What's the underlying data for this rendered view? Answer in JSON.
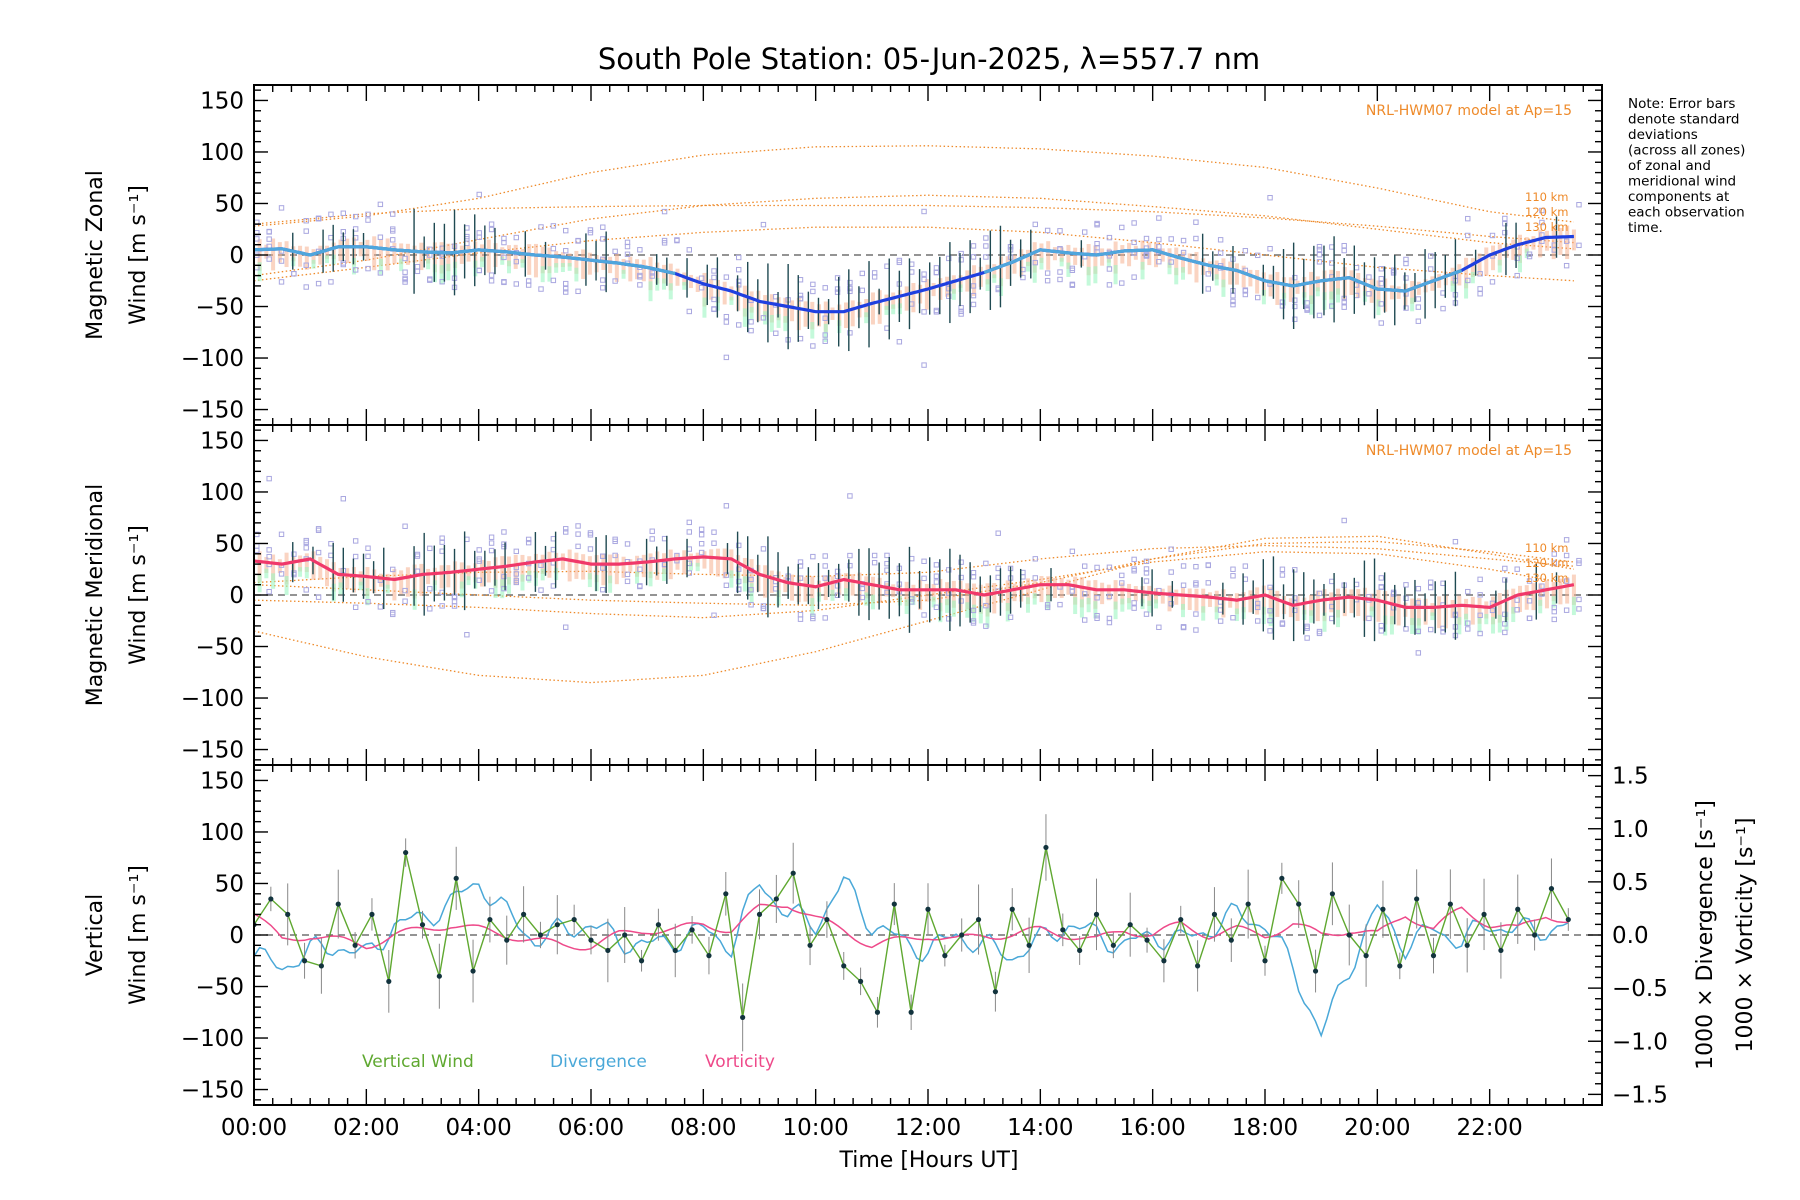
{
  "title": "South Pole Station: 05-Jun-2025, λ=557.7 nm",
  "note_lines": [
    "Note: Error bars",
    "denote standard",
    "deviations",
    "(across all zones)",
    "of zonal and",
    "meridional wind",
    "components at",
    "each observation",
    "time."
  ],
  "x_axis": {
    "label": "Time [Hours UT]",
    "ticks": [
      "00:00",
      "02:00",
      "04:00",
      "06:00",
      "08:00",
      "10:00",
      "12:00",
      "14:00",
      "16:00",
      "18:00",
      "20:00",
      "22:00"
    ]
  },
  "colors": {
    "model": "#ee8a2a",
    "zonal_mean": "#1f3fe0",
    "zonal_mean_light": "#4fa6dc",
    "meridional_mean": "#f0386a",
    "vertical": "#5fa830",
    "divergence": "#4aa8d8",
    "vorticity": "#ee4a8a",
    "scatter": "#a9a7e0",
    "errorbar": "#1f4a52",
    "green_shade": "#9df5c2",
    "salmon_shade": "#f5b090",
    "baseline": "#555555"
  },
  "chart_data": [
    {
      "type": "line",
      "panel": "zonal",
      "ylabel": [
        "Magnetic Zonal",
        "Wind [m s⁻¹]"
      ],
      "ylim": [
        -165,
        165
      ],
      "yticks": [
        "150",
        "100",
        "50",
        "0",
        "−50",
        "−100",
        "−150"
      ],
      "model_label": "NRL-HWM07 model at Ap=15",
      "model_altitudes": [
        "110 km",
        "120 km",
        "130 km"
      ],
      "series": [
        {
          "name": "Mean zonal wind",
          "x": [
            0,
            0.5,
            1,
            1.5,
            2,
            2.5,
            3,
            3.5,
            4,
            4.5,
            5,
            5.5,
            6,
            6.5,
            7,
            7.5,
            8,
            8.5,
            9,
            9.5,
            10,
            10.5,
            11,
            11.5,
            12,
            12.5,
            13,
            13.5,
            14,
            14.5,
            15,
            15.5,
            16,
            16.5,
            17,
            17.5,
            18,
            18.5,
            19,
            19.5,
            20,
            20.5,
            21,
            21.5,
            22,
            22.5,
            23,
            23.5
          ],
          "values": [
            5,
            6,
            0,
            8,
            8,
            5,
            3,
            2,
            5,
            3,
            0,
            -2,
            -5,
            -8,
            -12,
            -18,
            -28,
            -35,
            -45,
            -50,
            -55,
            -55,
            -47,
            -40,
            -33,
            -25,
            -17,
            -7,
            5,
            2,
            0,
            4,
            5,
            -3,
            -10,
            -15,
            -25,
            -30,
            -25,
            -22,
            -33,
            -35,
            -25,
            -15,
            0,
            10,
            17,
            18
          ]
        },
        {
          "name": "NRL-HWM07 110 km",
          "x": [
            0,
            2,
            4,
            6,
            8,
            10,
            12,
            14,
            16,
            18,
            20,
            22,
            23.5
          ],
          "values": [
            28,
            38,
            55,
            80,
            97,
            105,
            106,
            103,
            96,
            85,
            65,
            42,
            32
          ]
        },
        {
          "name": "NRL-HWM07 120 km",
          "x": [
            0,
            2,
            4,
            6,
            8,
            10,
            12,
            14,
            16,
            18,
            20,
            22,
            23.5
          ],
          "values": [
            -20,
            -5,
            15,
            35,
            48,
            55,
            58,
            55,
            47,
            38,
            25,
            12,
            6
          ]
        },
        {
          "name": "NRL-HWM07 130 km",
          "x": [
            0,
            2,
            4,
            6,
            8,
            10,
            12,
            14,
            16,
            18,
            20,
            22,
            23.5
          ],
          "values": [
            30,
            40,
            45,
            47,
            48,
            48,
            48,
            46,
            42,
            36,
            28,
            18,
            12
          ]
        },
        {
          "name": "NRL-HWM07 lower",
          "x": [
            0,
            2,
            4,
            6,
            8,
            10,
            12,
            14,
            16,
            18,
            20,
            22,
            23.5
          ],
          "values": [
            -25,
            -12,
            2,
            14,
            22,
            27,
            27,
            22,
            12,
            0,
            -12,
            -20,
            -25
          ]
        }
      ]
    },
    {
      "type": "line",
      "panel": "meridional",
      "ylabel": [
        "Magnetic Meridional",
        "Wind [m s⁻¹]"
      ],
      "ylim": [
        -165,
        165
      ],
      "yticks": [
        "150",
        "100",
        "50",
        "0",
        "−50",
        "−100",
        "−150"
      ],
      "model_label": "NRL-HWM07 model at Ap=15",
      "model_altitudes": [
        "110 km",
        "120 km",
        "130 km"
      ],
      "series": [
        {
          "name": "Mean meridional wind",
          "x": [
            0,
            0.5,
            1,
            1.5,
            2,
            2.5,
            3,
            3.5,
            4,
            4.5,
            5,
            5.5,
            6,
            6.5,
            7,
            7.5,
            8,
            8.5,
            9,
            9.5,
            10,
            10.5,
            11,
            11.5,
            12,
            12.5,
            13,
            13.5,
            14,
            14.5,
            15,
            15.5,
            16,
            16.5,
            17,
            17.5,
            18,
            18.5,
            19,
            19.5,
            20,
            20.5,
            21,
            21.5,
            22,
            22.5,
            23,
            23.5
          ],
          "values": [
            33,
            30,
            35,
            20,
            18,
            15,
            20,
            22,
            25,
            28,
            32,
            35,
            30,
            30,
            32,
            35,
            37,
            35,
            20,
            12,
            8,
            15,
            10,
            5,
            5,
            5,
            0,
            5,
            10,
            10,
            5,
            5,
            2,
            0,
            -2,
            -5,
            0,
            -10,
            -5,
            -2,
            -5,
            -12,
            -12,
            -10,
            -12,
            0,
            5,
            10
          ]
        },
        {
          "name": "NRL-HWM07 110 km",
          "x": [
            0,
            2,
            4,
            6,
            8,
            10,
            12,
            14,
            16,
            18,
            20,
            22,
            23.5
          ],
          "values": [
            -35,
            -60,
            -78,
            -85,
            -78,
            -55,
            -25,
            5,
            35,
            55,
            57,
            40,
            25
          ]
        },
        {
          "name": "NRL-HWM07 120 km",
          "x": [
            0,
            2,
            4,
            6,
            8,
            10,
            12,
            14,
            16,
            18,
            20,
            22,
            23.5
          ],
          "values": [
            10,
            5,
            0,
            -5,
            -8,
            -10,
            -5,
            12,
            35,
            50,
            52,
            42,
            32
          ]
        },
        {
          "name": "NRL-HWM07 130 km",
          "x": [
            0,
            2,
            4,
            6,
            8,
            10,
            12,
            14,
            16,
            18,
            20,
            22,
            23.5
          ],
          "values": [
            12,
            18,
            22,
            23,
            20,
            18,
            22,
            35,
            45,
            48,
            45,
            35,
            28
          ]
        },
        {
          "name": "NRL-HWM07 lower",
          "x": [
            0,
            2,
            4,
            6,
            8,
            10,
            12,
            14,
            16,
            18,
            20,
            22,
            23.5
          ],
          "values": [
            -5,
            -8,
            -12,
            -18,
            -22,
            -15,
            0,
            15,
            32,
            42,
            40,
            25,
            10
          ]
        }
      ]
    },
    {
      "type": "line",
      "panel": "vertical",
      "ylabel": [
        "Vertical",
        "Wind [m s⁻¹]"
      ],
      "ylim": [
        -165,
        165
      ],
      "yticks": [
        "150",
        "100",
        "50",
        "0",
        "−50",
        "−100",
        "−150"
      ],
      "y2label_divergence": "1000 × Divergence [s⁻¹]",
      "y2label_vorticity": "1000 × Vorticity [s⁻¹]",
      "y2lim": [
        -1.6,
        1.6
      ],
      "y2ticks": [
        "1.5",
        "1.0",
        "0.5",
        "0.0",
        "−0.5",
        "−1.0",
        "−1.5"
      ],
      "legend": [
        "Vertical Wind",
        "Divergence",
        "Vorticity"
      ],
      "series": [
        {
          "name": "Vertical Wind",
          "x": [
            0,
            0.3,
            0.6,
            0.9,
            1.2,
            1.5,
            1.8,
            2.1,
            2.4,
            2.7,
            3,
            3.3,
            3.6,
            3.9,
            4.2,
            4.5,
            4.8,
            5.1,
            5.4,
            5.7,
            6,
            6.3,
            6.6,
            6.9,
            7.2,
            7.5,
            7.8,
            8.1,
            8.4,
            8.7,
            9,
            9.3,
            9.6,
            9.9,
            10.2,
            10.5,
            10.8,
            11.1,
            11.4,
            11.7,
            12,
            12.3,
            12.6,
            12.9,
            13.2,
            13.5,
            13.8,
            14.1,
            14.4,
            14.7,
            15,
            15.3,
            15.6,
            15.9,
            16.2,
            16.5,
            16.8,
            17.1,
            17.4,
            17.7,
            18,
            18.3,
            18.6,
            18.9,
            19.2,
            19.5,
            19.8,
            20.1,
            20.4,
            20.7,
            21,
            21.3,
            21.6,
            21.9,
            22.2,
            22.5,
            22.8,
            23.1,
            23.4
          ],
          "values": [
            10,
            35,
            20,
            -25,
            -30,
            30,
            -10,
            20,
            -45,
            80,
            10,
            -40,
            55,
            -35,
            15,
            -5,
            20,
            0,
            10,
            15,
            -5,
            -15,
            0,
            -25,
            10,
            -15,
            5,
            -20,
            40,
            -80,
            20,
            35,
            60,
            -10,
            15,
            -30,
            -45,
            -75,
            30,
            -75,
            25,
            -20,
            0,
            15,
            -55,
            25,
            -10,
            85,
            5,
            -15,
            20,
            -10,
            10,
            -5,
            -25,
            15,
            -30,
            20,
            -5,
            30,
            -25,
            55,
            30,
            -35,
            40,
            0,
            -20,
            25,
            -30,
            35,
            -20,
            30,
            -10,
            20,
            -15,
            25,
            0,
            45,
            15
          ]
        },
        {
          "name": "Divergence",
          "x": [
            0,
            0.5,
            1,
            1.5,
            2,
            2.5,
            3,
            3.5,
            4,
            4.5,
            5,
            5.5,
            6,
            6.5,
            7,
            7.5,
            8,
            8.5,
            9,
            9.5,
            10,
            10.5,
            11,
            11.5,
            12,
            12.5,
            13,
            13.5,
            14,
            14.5,
            15,
            15.5,
            16,
            16.5,
            17,
            17.5,
            18,
            18.5,
            19,
            19.5,
            20,
            20.5,
            21,
            21.5,
            22,
            22.5,
            23,
            23.5
          ],
          "values": [
            -0.2,
            -0.3,
            -0.15,
            -0.1,
            -0.2,
            0.1,
            0.15,
            0.3,
            0.5,
            0.2,
            -0.05,
            0.05,
            0.1,
            -0.05,
            -0.1,
            -0.05,
            0.05,
            -0.1,
            0.5,
            0.2,
            0.1,
            0.5,
            0.1,
            -0.05,
            -0.15,
            0.0,
            -0.1,
            -0.2,
            -0.05,
            0.1,
            0.0,
            -0.1,
            0.0,
            -0.05,
            0.05,
            0.2,
            0.1,
            -0.3,
            -0.95,
            -0.3,
            0.25,
            -0.1,
            0.05,
            -0.05,
            0.1,
            0.05,
            0.05,
            0.1
          ]
        },
        {
          "name": "Vorticity",
          "x": [
            0,
            0.5,
            1,
            1.5,
            2,
            2.5,
            3,
            3.5,
            4,
            4.5,
            5,
            5.5,
            6,
            6.5,
            7,
            7.5,
            8,
            8.5,
            9,
            9.5,
            10,
            10.5,
            11,
            11.5,
            12,
            12.5,
            13,
            13.5,
            14,
            14.5,
            15,
            15.5,
            16,
            16.5,
            17,
            17.5,
            18,
            18.5,
            19,
            19.5,
            20,
            20.5,
            21,
            21.5,
            22,
            22.5,
            23,
            23.5
          ],
          "values": [
            0.2,
            -0.05,
            0.0,
            -0.05,
            -0.1,
            0.0,
            0.05,
            0.1,
            0.05,
            0.0,
            -0.05,
            -0.1,
            -0.1,
            0.0,
            0.05,
            0.05,
            0.1,
            0.05,
            0.25,
            0.3,
            0.15,
            0.05,
            -0.1,
            -0.05,
            0.0,
            -0.05,
            0.0,
            0.0,
            0.05,
            0.0,
            -0.05,
            0.05,
            0.0,
            0.1,
            0.0,
            0.05,
            0.0,
            0.1,
            0.0,
            0.05,
            0.0,
            0.2,
            0.05,
            0.25,
            0.1,
            0.05,
            0.2,
            0.1
          ]
        }
      ]
    }
  ]
}
